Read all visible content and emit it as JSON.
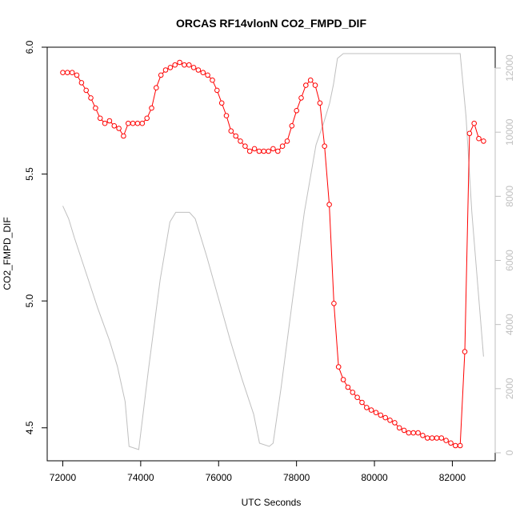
{
  "chart_data": {
    "type": "line",
    "title": "ORCAS RF14vlonN CO2_FMPD_DIF",
    "xlabel": "UTC Seconds",
    "ylabel": "CO2_FMPD_DIF",
    "xlim": [
      71600,
      83100
    ],
    "ylim": [
      4.37,
      6.0
    ],
    "y2lim": [
      -250,
      12650
    ],
    "x_ticks": [
      72000,
      74000,
      76000,
      78000,
      80000,
      82000
    ],
    "x_tick_labels": [
      "72000",
      "74000",
      "76000",
      "78000",
      "80000",
      "82000"
    ],
    "y_ticks": [
      4.5,
      5.0,
      5.5,
      6.0
    ],
    "y_tick_labels": [
      "4.5",
      "5.0",
      "5.5",
      "6.0"
    ],
    "y2_ticks": [
      0,
      2000,
      4000,
      6000,
      8000,
      10000,
      12000
    ],
    "y2_tick_labels": [
      "0",
      "2000",
      "4000",
      "6000",
      "8000",
      "10000",
      "12000"
    ],
    "grid": false,
    "colors": {
      "primary": "#ff0000",
      "secondary": "#bfbfbf",
      "axis": "#000000"
    },
    "series": [
      {
        "axis": "left",
        "style": "line+open-circles",
        "color": "#ff0000",
        "x": [
          72000,
          72120,
          72240,
          72360,
          72480,
          72600,
          72720,
          72840,
          72960,
          73080,
          73200,
          73320,
          73440,
          73560,
          73680,
          73800,
          73920,
          74040,
          74160,
          74280,
          74400,
          74520,
          74640,
          74760,
          74880,
          75000,
          75120,
          75240,
          75360,
          75480,
          75600,
          75720,
          75840,
          75960,
          76080,
          76200,
          76320,
          76440,
          76560,
          76680,
          76800,
          76920,
          77040,
          77160,
          77280,
          77400,
          77520,
          77640,
          77760,
          77880,
          78000,
          78120,
          78240,
          78360,
          78480,
          78600,
          78720,
          78840,
          78960,
          79080,
          79200,
          79320,
          79440,
          79560,
          79680,
          79800,
          79920,
          80040,
          80160,
          80280,
          80400,
          80520,
          80640,
          80760,
          80880,
          81000,
          81120,
          81240,
          81360,
          81480,
          81600,
          81720,
          81840,
          81960,
          82080,
          82200,
          82320,
          82440,
          82560,
          82680,
          82800
        ],
        "values": [
          5.9,
          5.9,
          5.9,
          5.89,
          5.86,
          5.83,
          5.8,
          5.76,
          5.72,
          5.7,
          5.71,
          5.69,
          5.68,
          5.65,
          5.7,
          5.7,
          5.7,
          5.7,
          5.72,
          5.76,
          5.84,
          5.89,
          5.91,
          5.92,
          5.93,
          5.94,
          5.93,
          5.93,
          5.92,
          5.91,
          5.9,
          5.89,
          5.87,
          5.83,
          5.78,
          5.73,
          5.67,
          5.65,
          5.63,
          5.61,
          5.59,
          5.6,
          5.59,
          5.59,
          5.59,
          5.6,
          5.59,
          5.61,
          5.63,
          5.69,
          5.75,
          5.8,
          5.85,
          5.87,
          5.85,
          5.78,
          5.61,
          5.38,
          4.99,
          4.74,
          4.69,
          4.66,
          4.64,
          4.62,
          4.6,
          4.58,
          4.57,
          4.56,
          4.55,
          4.54,
          4.53,
          4.52,
          4.5,
          4.49,
          4.48,
          4.48,
          4.48,
          4.47,
          4.46,
          4.46,
          4.46,
          4.46,
          4.45,
          4.44,
          4.43,
          4.43,
          4.8,
          5.66,
          5.7,
          5.64,
          5.63
        ]
      },
      {
        "axis": "right",
        "style": "line",
        "color": "#bfbfbf",
        "x": [
          72000,
          72150,
          72300,
          72600,
          72900,
          73200,
          73400,
          73600,
          73700,
          73950,
          74200,
          74500,
          74750,
          74900,
          75000,
          75250,
          75400,
          75700,
          76000,
          76300,
          76600,
          76900,
          77050,
          77300,
          77400,
          77600,
          77900,
          78200,
          78500,
          78700,
          78850,
          78950,
          79050,
          79200,
          79400,
          80000,
          80600,
          81200,
          81800,
          82200,
          82350,
          82500,
          82800
        ],
        "values": [
          7700,
          7300,
          6700,
          5600,
          4500,
          3500,
          2700,
          1600,
          200,
          100,
          2600,
          5400,
          7200,
          7500,
          7500,
          7500,
          7300,
          6100,
          4800,
          3500,
          2300,
          1200,
          300,
          200,
          300,
          2000,
          4800,
          7500,
          9600,
          10300,
          10900,
          11500,
          12300,
          12450,
          12450,
          12450,
          12450,
          12450,
          12450,
          12450,
          10500,
          7500,
          3000
        ]
      }
    ]
  }
}
